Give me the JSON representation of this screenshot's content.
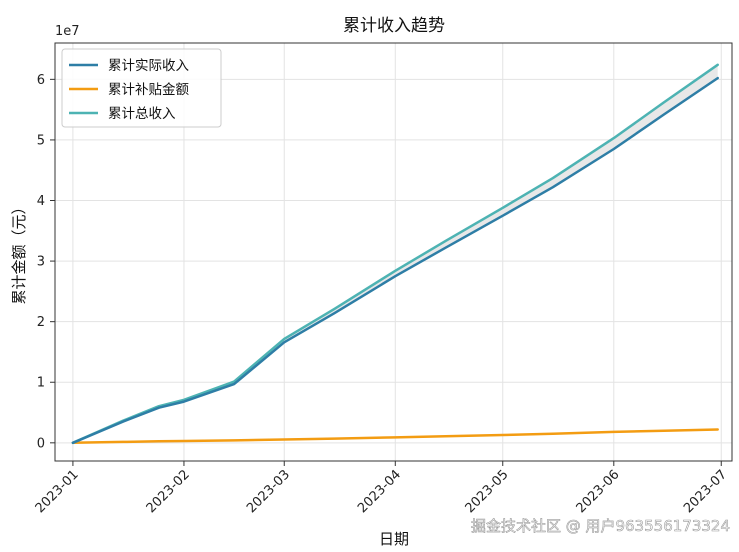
{
  "chart_data": {
    "type": "line",
    "title": "累计收入趋势",
    "xlabel": "日期",
    "ylabel": "累计金额（元）",
    "y_offset_label": "1e7",
    "x_tick_labels": [
      "2023-01",
      "2023-02",
      "2023-03",
      "2023-04",
      "2023-05",
      "2023-06",
      "2023-07"
    ],
    "y_tick_labels": [
      "0",
      "1",
      "2",
      "3",
      "4",
      "5",
      "6"
    ],
    "ylim": [
      -0.3,
      6.6
    ],
    "grid": true,
    "legend_position": "top-left",
    "x": [
      "2023-01-01",
      "2023-01-15",
      "2023-01-25",
      "2023-02-01",
      "2023-02-15",
      "2023-03-01",
      "2023-03-15",
      "2023-04-01",
      "2023-04-15",
      "2023-05-01",
      "2023-05-15",
      "2023-06-01",
      "2023-06-15",
      "2023-06-30"
    ],
    "series": [
      {
        "name": "累计实际收入",
        "color": "#2e7ea6",
        "values": [
          0.0,
          0.35,
          0.58,
          0.68,
          0.97,
          1.66,
          2.14,
          2.75,
          3.22,
          3.75,
          4.22,
          4.85,
          5.42,
          6.02
        ]
      },
      {
        "name": "累计补贴金额",
        "color": "#f39c12",
        "values": [
          0.0,
          0.015,
          0.025,
          0.03,
          0.04,
          0.055,
          0.07,
          0.09,
          0.11,
          0.13,
          0.15,
          0.18,
          0.2,
          0.22
        ]
      },
      {
        "name": "累计总收入",
        "color": "#4db3b3",
        "values": [
          0.0,
          0.365,
          0.605,
          0.71,
          1.01,
          1.715,
          2.21,
          2.84,
          3.33,
          3.88,
          4.37,
          5.03,
          5.62,
          6.24
        ]
      }
    ],
    "fill_between": {
      "lower": "累计实际收入",
      "upper": "累计总收入",
      "color": "#e6e6e6"
    }
  },
  "watermark": "掘金技术社区 @ 用户963556173324"
}
